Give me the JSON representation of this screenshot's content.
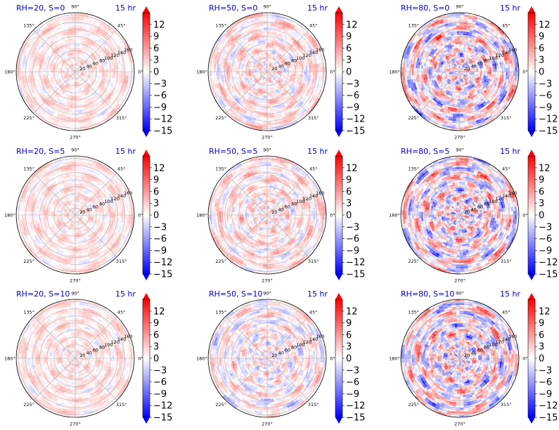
{
  "chart_data": {
    "type": "heatmap",
    "projection": "polar",
    "layout": "3x3 grid of polar plots, each with its own vertical colorbar",
    "colormap": "bwr",
    "colorbar": {
      "range": [
        -15,
        15
      ],
      "extend": "both",
      "ticks": [
        "12",
        "9",
        "6",
        "3",
        "0",
        "−3",
        "−6",
        "−9",
        "−12",
        "−15"
      ]
    },
    "angle_ticks": [
      "0°",
      "45°",
      "90°",
      "135°",
      "180°",
      "225°",
      "270°",
      "315°"
    ],
    "radial_ticks": [
      "20",
      "40",
      "60",
      "80",
      "100",
      "120",
      "140",
      "160"
    ],
    "time_label": "15 hr",
    "panels": [
      {
        "title": "RH=20, S=0",
        "time": "15 hr",
        "rh": 20,
        "s": 0,
        "field_amplitude": 3.5
      },
      {
        "title": "RH=50, S=0",
        "time": "15 hr",
        "rh": 50,
        "s": 0,
        "field_amplitude": 5.5
      },
      {
        "title": "RH=80, S=0",
        "time": "15 hr",
        "rh": 80,
        "s": 0,
        "field_amplitude": 12
      },
      {
        "title": "RH=20, S=5",
        "time": "15 hr",
        "rh": 20,
        "s": 5,
        "field_amplitude": 3.5
      },
      {
        "title": "RH=50, S=5",
        "time": "15 hr",
        "rh": 50,
        "s": 5,
        "field_amplitude": 5.5
      },
      {
        "title": "RH=80, S=5",
        "time": "15 hr",
        "rh": 80,
        "s": 5,
        "field_amplitude": 12
      },
      {
        "title": "RH=20, S=10",
        "time": "15 hr",
        "rh": 20,
        "s": 10,
        "field_amplitude": 3.5
      },
      {
        "title": "RH=50, S=10",
        "time": "15 hr",
        "rh": 50,
        "s": 10,
        "field_amplitude": 6
      },
      {
        "title": "RH=80, S=10",
        "time": "15 hr",
        "rh": 80,
        "s": 10,
        "field_amplitude": 12
      }
    ]
  }
}
